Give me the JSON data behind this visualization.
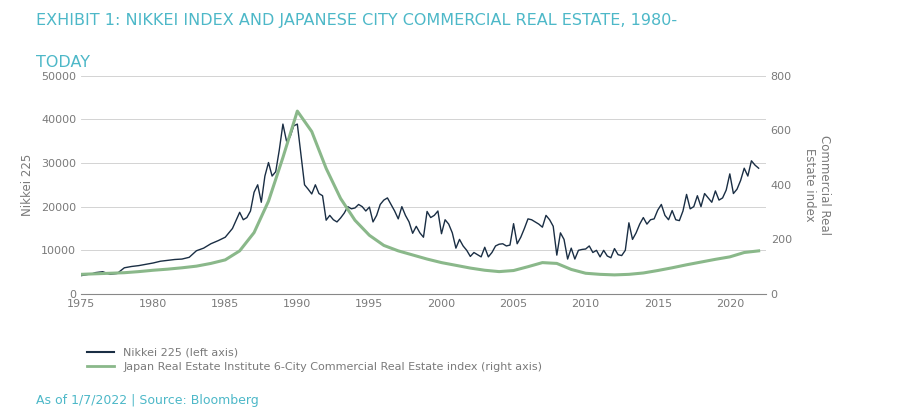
{
  "title_line1": "EXHIBIT 1: NIKKEI INDEX AND JAPANESE CITY COMMERCIAL REAL ESTATE, 1980-",
  "title_line2": "TODAY",
  "title_color": "#4db8c8",
  "title_fontsize": 11.5,
  "ylabel_left": "Nikkei 225",
  "ylabel_right": "Commercial Real\nEstate index",
  "ylabel_color": "#7a7a7a",
  "source_text": "As of 1/7/2022 | Source: Bloomberg",
  "source_color": "#4db8c8",
  "nikkei_color": "#1a2e44",
  "re_color": "#8ab88a",
  "background_color": "#ffffff",
  "grid_color": "#cccccc",
  "xlim": [
    1975,
    2022.5
  ],
  "ylim_left": [
    0,
    50000
  ],
  "ylim_right": [
    0,
    800
  ],
  "xticks": [
    1975,
    1980,
    1985,
    1990,
    1995,
    2000,
    2005,
    2010,
    2015,
    2020
  ],
  "yticks_left": [
    0,
    10000,
    20000,
    30000,
    40000,
    50000
  ],
  "yticks_right": [
    0,
    200,
    400,
    600,
    800
  ],
  "legend1": "Nikkei 225 (left axis)",
  "legend2": "Japan Real Estate Institute 6-City Commercial Real Estate index (right axis)",
  "nikkei_years": [
    1975.0,
    1975.25,
    1975.5,
    1975.75,
    1976.0,
    1976.5,
    1977.0,
    1977.5,
    1978.0,
    1978.5,
    1979.0,
    1979.5,
    1980.0,
    1980.5,
    1981.0,
    1981.5,
    1982.0,
    1982.5,
    1983.0,
    1983.5,
    1984.0,
    1984.5,
    1985.0,
    1985.5,
    1986.0,
    1986.25,
    1986.5,
    1986.75,
    1987.0,
    1987.25,
    1987.5,
    1987.75,
    1988.0,
    1988.25,
    1988.5,
    1988.75,
    1989.0,
    1989.25,
    1989.5,
    1989.75,
    1990.0,
    1990.25,
    1990.5,
    1990.75,
    1991.0,
    1991.25,
    1991.5,
    1991.75,
    1992.0,
    1992.25,
    1992.5,
    1992.75,
    1993.0,
    1993.25,
    1993.5,
    1993.75,
    1994.0,
    1994.25,
    1994.5,
    1994.75,
    1995.0,
    1995.25,
    1995.5,
    1995.75,
    1996.0,
    1996.25,
    1996.5,
    1996.75,
    1997.0,
    1997.25,
    1997.5,
    1997.75,
    1998.0,
    1998.25,
    1998.5,
    1998.75,
    1999.0,
    1999.25,
    1999.5,
    1999.75,
    2000.0,
    2000.25,
    2000.5,
    2000.75,
    2001.0,
    2001.25,
    2001.5,
    2001.75,
    2002.0,
    2002.25,
    2002.5,
    2002.75,
    2003.0,
    2003.25,
    2003.5,
    2003.75,
    2004.0,
    2004.25,
    2004.5,
    2004.75,
    2005.0,
    2005.25,
    2005.5,
    2005.75,
    2006.0,
    2006.25,
    2006.5,
    2006.75,
    2007.0,
    2007.25,
    2007.5,
    2007.75,
    2008.0,
    2008.25,
    2008.5,
    2008.75,
    2009.0,
    2009.25,
    2009.5,
    2009.75,
    2010.0,
    2010.25,
    2010.5,
    2010.75,
    2011.0,
    2011.25,
    2011.5,
    2011.75,
    2012.0,
    2012.25,
    2012.5,
    2012.75,
    2013.0,
    2013.25,
    2013.5,
    2013.75,
    2014.0,
    2014.25,
    2014.5,
    2014.75,
    2015.0,
    2015.25,
    2015.5,
    2015.75,
    2016.0,
    2016.25,
    2016.5,
    2016.75,
    2017.0,
    2017.25,
    2017.5,
    2017.75,
    2018.0,
    2018.25,
    2018.5,
    2018.75,
    2019.0,
    2019.25,
    2019.5,
    2019.75,
    2020.0,
    2020.25,
    2020.5,
    2020.75,
    2021.0,
    2021.25,
    2021.5,
    2021.75,
    2022.0
  ],
  "nikkei_values": [
    4200,
    4350,
    4500,
    4600,
    4900,
    5100,
    4500,
    4700,
    6000,
    6300,
    6500,
    6800,
    7100,
    7500,
    7700,
    7900,
    8000,
    8400,
    9900,
    10500,
    11500,
    12200,
    13000,
    15000,
    18700,
    17000,
    17500,
    19000,
    23300,
    25000,
    21000,
    27000,
    30100,
    27000,
    28000,
    33000,
    38900,
    35000,
    36000,
    38500,
    38900,
    32000,
    25000,
    24000,
    22900,
    25000,
    23000,
    22500,
    16900,
    18000,
    17000,
    16500,
    17400,
    18500,
    20000,
    19500,
    19700,
    20500,
    20000,
    19000,
    19900,
    16500,
    18000,
    20500,
    21500,
    22000,
    20500,
    19000,
    17200,
    20000,
    18000,
    16500,
    13900,
    15500,
    14000,
    13000,
    18900,
    17500,
    18000,
    19000,
    13800,
    17000,
    16000,
    14000,
    10500,
    12500,
    11000,
    10000,
    8600,
    9500,
    9000,
    8500,
    10700,
    8500,
    9500,
    11000,
    11400,
    11500,
    11000,
    11200,
    16100,
    11500,
    13000,
    15000,
    17200,
    17000,
    16500,
    16000,
    15300,
    18000,
    17000,
    15500,
    8900,
    14000,
    12500,
    8000,
    10500,
    8000,
    10000,
    10200,
    10300,
    11000,
    9500,
    10000,
    8500,
    10000,
    8700,
    8300,
    10400,
    9000,
    8800,
    10000,
    16300,
    12500,
    14000,
    16000,
    17500,
    16000,
    17000,
    17200,
    19200,
    20500,
    18000,
    17000,
    19100,
    17000,
    16800,
    19000,
    22800,
    19500,
    20000,
    22500,
    20000,
    23000,
    22000,
    21000,
    23600,
    21500,
    22000,
    23800,
    27500,
    23000,
    24000,
    26000,
    28800,
    27000,
    30500,
    29500,
    28800
  ],
  "re_years": [
    1975,
    1976,
    1977,
    1978,
    1979,
    1980,
    1981,
    1982,
    1983,
    1984,
    1985,
    1986,
    1987,
    1988,
    1989,
    1990,
    1991,
    1992,
    1993,
    1994,
    1995,
    1996,
    1997,
    1998,
    1999,
    2000,
    2001,
    2002,
    2003,
    2004,
    2005,
    2006,
    2007,
    2008,
    2009,
    2010,
    2011,
    2012,
    2013,
    2014,
    2015,
    2016,
    2017,
    2018,
    2019,
    2020,
    2021,
    2022
  ],
  "re_values": [
    72,
    74,
    76,
    78,
    82,
    87,
    91,
    96,
    102,
    112,
    125,
    158,
    225,
    340,
    500,
    670,
    595,
    460,
    350,
    270,
    215,
    178,
    158,
    143,
    128,
    115,
    105,
    95,
    87,
    82,
    86,
    100,
    115,
    112,
    90,
    76,
    72,
    70,
    72,
    77,
    86,
    96,
    107,
    117,
    127,
    136,
    152,
    158
  ]
}
